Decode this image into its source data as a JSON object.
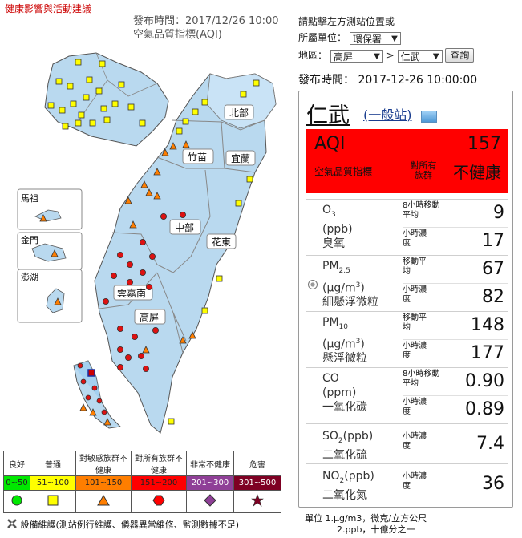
{
  "header": {
    "health_link": "健康影響與活動建議",
    "publish_time_left": "發布時間：2017/12/26 10:00",
    "index_name_left": "空氣品質指標(AQI)"
  },
  "query": {
    "hint": "請點擊左方測站位置或",
    "agency_label": "所屬單位：",
    "agency_value": "環保署",
    "region_label": "地區：",
    "county_value": "高屏",
    "separator": ">",
    "station_value": "仁武",
    "search_button": "查詢",
    "publish_time": "發布時間： 2017-12-26 10:00:00"
  },
  "regions": {
    "north": "北部",
    "zhumiao": "竹苗",
    "yilan": "宜蘭",
    "central": "中部",
    "hualien": "花東",
    "yunjianan": "雲嘉南",
    "gaoping": "高屏",
    "matsu": "馬祖",
    "kinmen": "金門",
    "penghu": "澎湖"
  },
  "station": {
    "name": "仁武",
    "type": "(一般站)",
    "aqi_label": "AQI",
    "aqi_value": "157",
    "aqi_sub": "空氣品質指標",
    "status_prefix": "對所有族群",
    "status": "不健康",
    "status_color": "#ff0000"
  },
  "pollutants": [
    {
      "id": "o3",
      "name": "O3",
      "unit": "(ppb)",
      "cname": "臭氧",
      "m1_label": "8小時移動平均",
      "m1": "9",
      "m2_label": "小時濃度",
      "m2": "17"
    },
    {
      "id": "pm25",
      "name": "PM2.5",
      "unit": "(μg/m3)",
      "cname": "細懸浮微粒",
      "m1_label": "移動平均",
      "m1": "67",
      "m2_label": "小時濃度",
      "m2": "82"
    },
    {
      "id": "pm10",
      "name": "PM10",
      "unit": "(μg/m3)",
      "cname": "懸浮微粒",
      "m1_label": "移動平均",
      "m1": "148",
      "m2_label": "小時濃度",
      "m2": "177"
    },
    {
      "id": "co",
      "name": "CO",
      "unit": "(ppm)",
      "cname": "一氧化碳",
      "m1_label": "8小時移動平均",
      "m1": "0.90",
      "m2_label": "小時濃度",
      "m2": "0.89"
    },
    {
      "id": "so2",
      "name": "SO2(ppb)",
      "cname": "二氧化硫",
      "m1_label": "小時濃度",
      "m1": "7.4"
    },
    {
      "id": "no2",
      "name": "NO2(ppb)",
      "cname": "二氧化氮",
      "m1_label": "小時濃度",
      "m1": "36"
    }
  ],
  "units_note": {
    "line1": "單位 1.μg/m3，微克/立方公尺",
    "line2": "2.ppb，十億分之一"
  },
  "legend": [
    {
      "label": "良好",
      "range": "0~50",
      "color": "#00e800",
      "symbol": "circle",
      "symbol_color": "#00e800"
    },
    {
      "label": "普通",
      "range": "51~100",
      "color": "#ffff00",
      "symbol": "square",
      "symbol_color": "#ffff00"
    },
    {
      "label": "對敏感族群不健康",
      "range": "101~150",
      "color": "#ff7e00",
      "symbol": "triangle",
      "symbol_color": "#ff7e00"
    },
    {
      "label": "對所有族群不健康",
      "range": "151~200",
      "color": "#ff0000",
      "symbol": "hexagon",
      "symbol_color": "#ff0000"
    },
    {
      "label": "非常不健康",
      "range": "201~300",
      "color": "#8f3f97",
      "symbol": "diamond",
      "symbol_color": "#8f3f97"
    },
    {
      "label": "危害",
      "range": "301~500",
      "color": "#7e0023",
      "symbol": "star",
      "symbol_color": "#7e0023"
    }
  ],
  "maintenance_note": "設備維護(測站例行維護、儀器異常維修、監測數據不足)"
}
